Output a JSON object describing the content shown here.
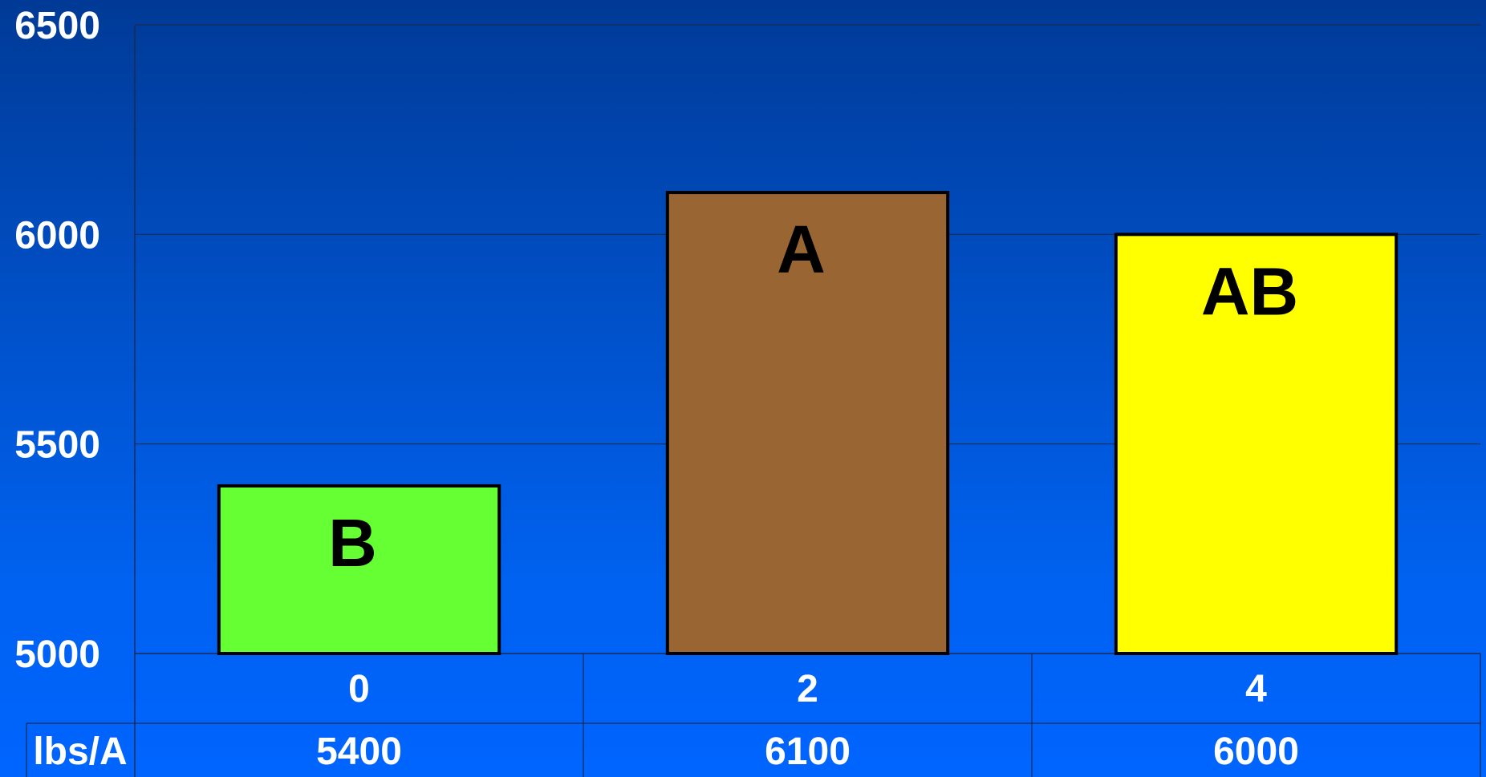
{
  "chart_data": {
    "type": "bar",
    "categories": [
      "0",
      "2",
      "4"
    ],
    "values": [
      5400,
      6100,
      6000
    ],
    "bar_labels": [
      "B",
      "A",
      "AB"
    ],
    "bar_colors": [
      "#66ff33",
      "#996633",
      "#ffff00"
    ],
    "ylim": [
      5000,
      6500
    ],
    "yticks": [
      "5000",
      "5500",
      "6000",
      "6500"
    ],
    "ytick_values": [
      5000,
      5500,
      6000,
      6500
    ],
    "grid": true,
    "table": {
      "row_header": "lbs/A",
      "values": [
        "5400",
        "6100",
        "6000"
      ]
    }
  }
}
